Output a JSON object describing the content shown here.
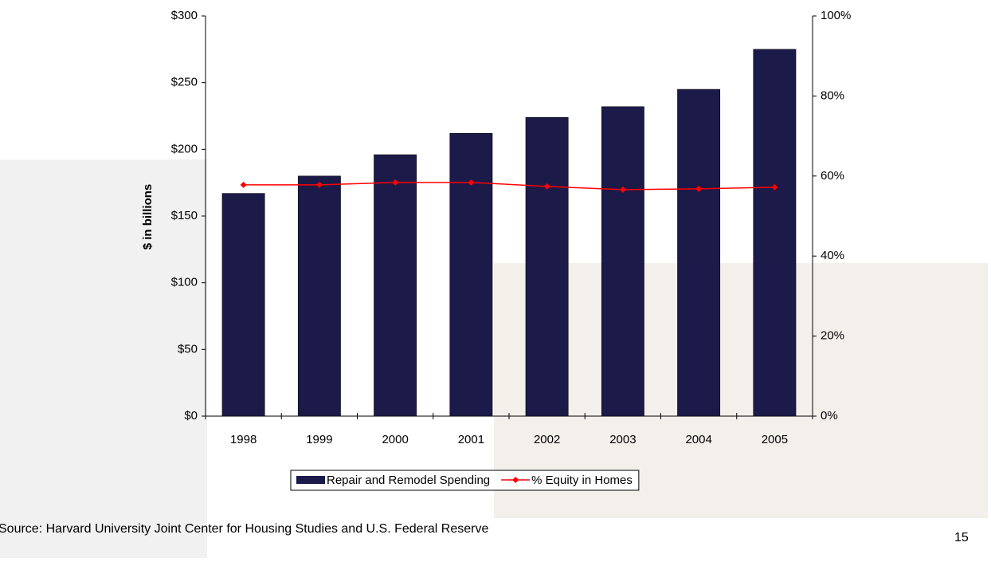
{
  "chart_data": {
    "type": "bar",
    "y_axis_title": "$ in billions",
    "categories": [
      "1998",
      "1999",
      "2000",
      "2001",
      "2002",
      "2003",
      "2004",
      "2005"
    ],
    "series": [
      {
        "name": "Repair and Remodel Spending",
        "type": "bar",
        "color": "#1c1a48",
        "values": [
          167,
          180,
          196,
          212,
          224,
          232,
          245,
          275
        ]
      },
      {
        "name": "% Equity in Homes",
        "type": "line",
        "axis": "y2",
        "color": "#ff0000",
        "values": [
          57.8,
          57.8,
          58.4,
          58.4,
          57.4,
          56.6,
          56.8,
          57.2
        ]
      }
    ],
    "ylim": [
      0,
      300
    ],
    "yticks": [
      {
        "value": 0,
        "label": "$0"
      },
      {
        "value": 50,
        "label": "$50"
      },
      {
        "value": 100,
        "label": "$100"
      },
      {
        "value": 150,
        "label": "$150"
      },
      {
        "value": 200,
        "label": "$200"
      },
      {
        "value": 250,
        "label": "$250"
      },
      {
        "value": 300,
        "label": "$300"
      }
    ],
    "y2lim": [
      0,
      100
    ],
    "y2ticks": [
      {
        "value": 0,
        "label": "0%"
      },
      {
        "value": 20,
        "label": "20%"
      },
      {
        "value": 40,
        "label": "40%"
      },
      {
        "value": 60,
        "label": "60%"
      },
      {
        "value": 80,
        "label": "80%"
      },
      {
        "value": 100,
        "label": "100%"
      }
    ],
    "legend": "bottom"
  },
  "footer": {
    "source": "Source: Harvard University Joint Center for Housing Studies and U.S. Federal Reserve",
    "page_number": 15
  }
}
